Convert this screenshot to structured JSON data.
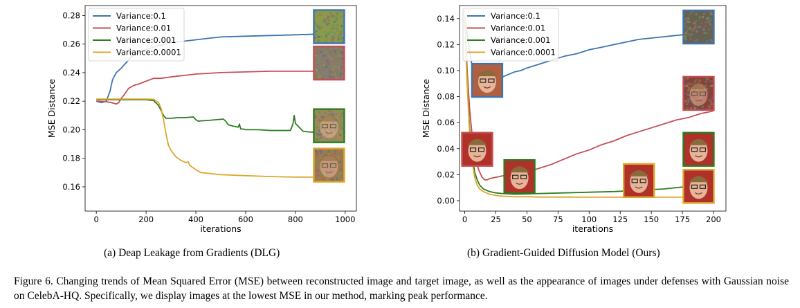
{
  "figure": {
    "caption_a": "(a) Deap Leakage from Gradients (DLG)",
    "caption_b": "(b) Gradient-Guided Diffusion Model (Ours)",
    "caption_main": "Figure 6. Changing trends of Mean Squared Error (MSE) between reconstructed image and target image, as well as the appearance of images under defenses with Gaussian noise on CelebA-HQ. Specifically, we display images at the lowest MSE in our method, marking peak performance."
  },
  "chart_data": [
    {
      "type": "line",
      "xlabel": "iterations",
      "ylabel": "MSE Distance",
      "xlim": [
        -45,
        1045
      ],
      "ylim": [
        0.143,
        0.287
      ],
      "xticks": [
        0,
        200,
        400,
        600,
        800,
        1000
      ],
      "yticks": [
        0.16,
        0.18,
        0.2,
        0.22,
        0.24,
        0.26,
        0.28
      ],
      "legend_position": "top-left",
      "grid": false,
      "series": [
        {
          "name": "Variance:0.1",
          "color": "#3b75af",
          "x": [
            0,
            20,
            40,
            55,
            65,
            80,
            100,
            120,
            140,
            170,
            200,
            250,
            300,
            350,
            400,
            450,
            500,
            600,
            700,
            800,
            900,
            1000
          ],
          "y": [
            0.22,
            0.219,
            0.22,
            0.227,
            0.235,
            0.24,
            0.243,
            0.247,
            0.251,
            0.254,
            0.256,
            0.259,
            0.261,
            0.262,
            0.263,
            0.264,
            0.265,
            0.2655,
            0.266,
            0.2665,
            0.267,
            0.267
          ]
        },
        {
          "name": "Variance:0.01",
          "color": "#c44e52",
          "x": [
            0,
            20,
            40,
            60,
            80,
            90,
            100,
            110,
            130,
            150,
            170,
            200,
            230,
            260,
            300,
            350,
            400,
            500,
            600,
            700,
            800,
            900,
            1000
          ],
          "y": [
            0.22,
            0.2198,
            0.2196,
            0.219,
            0.218,
            0.219,
            0.222,
            0.224,
            0.229,
            0.231,
            0.232,
            0.234,
            0.236,
            0.236,
            0.237,
            0.238,
            0.239,
            0.24,
            0.2405,
            0.241,
            0.241,
            0.241,
            0.241
          ]
        },
        {
          "name": "Variance:0.001",
          "color": "#2a7d1e",
          "x": [
            0,
            50,
            100,
            150,
            200,
            230,
            250,
            270,
            280,
            300,
            330,
            360,
            390,
            400,
            410,
            420,
            450,
            480,
            510,
            520,
            530,
            550,
            570,
            575,
            580,
            590,
            600,
            650,
            700,
            750,
            780,
            790,
            795,
            800,
            830,
            850,
            900,
            950,
            1000
          ],
          "y": [
            0.221,
            0.221,
            0.221,
            0.221,
            0.221,
            0.2205,
            0.217,
            0.21,
            0.208,
            0.208,
            0.2085,
            0.2085,
            0.209,
            0.207,
            0.206,
            0.2062,
            0.2065,
            0.207,
            0.2075,
            0.206,
            0.2035,
            0.2025,
            0.2018,
            0.204,
            0.2005,
            0.2005,
            0.2,
            0.2,
            0.1995,
            0.1995,
            0.1995,
            0.204,
            0.21,
            0.2045,
            0.199,
            0.1985,
            0.198,
            0.198,
            0.198
          ]
        },
        {
          "name": "Variance:0.0001",
          "color": "#dfa52a",
          "x": [
            0,
            50,
            100,
            150,
            200,
            230,
            250,
            260,
            270,
            280,
            290,
            300,
            320,
            340,
            360,
            370,
            375,
            380,
            400,
            420,
            500,
            600,
            700,
            800,
            900,
            1000
          ],
          "y": [
            0.2215,
            0.2215,
            0.2215,
            0.2215,
            0.2215,
            0.2213,
            0.219,
            0.215,
            0.207,
            0.197,
            0.189,
            0.1855,
            0.181,
            0.1785,
            0.177,
            0.1775,
            0.175,
            0.1745,
            0.172,
            0.17,
            0.1685,
            0.1678,
            0.1672,
            0.1668,
            0.1668,
            0.1668
          ]
        }
      ]
    },
    {
      "type": "line",
      "xlabel": "iterations",
      "ylabel": "MSE Distance",
      "xlim": [
        -4.2,
        210
      ],
      "ylim": [
        -0.008,
        0.15
      ],
      "xticks": [
        0,
        25,
        50,
        75,
        100,
        125,
        150,
        175,
        200
      ],
      "yticks": [
        0.0,
        0.02,
        0.04,
        0.06,
        0.08,
        0.1,
        0.12,
        0.14
      ],
      "legend_position": "top-left",
      "grid": false,
      "series": [
        {
          "name": "Variance:0.1",
          "color": "#3b75af",
          "x": [
            0,
            2,
            4,
            6,
            8,
            10,
            12,
            14,
            16,
            18,
            20,
            22,
            24,
            26,
            28,
            30,
            35,
            40,
            45,
            50,
            60,
            70,
            80,
            90,
            100,
            110,
            120,
            130,
            140,
            150,
            160,
            170,
            180,
            190,
            200
          ],
          "y": [
            0.142,
            0.129,
            0.115,
            0.103,
            0.094,
            0.089,
            0.086,
            0.084,
            0.083,
            0.084,
            0.086,
            0.088,
            0.09,
            0.092,
            0.094,
            0.095,
            0.097,
            0.099,
            0.1,
            0.102,
            0.105,
            0.108,
            0.111,
            0.113,
            0.116,
            0.118,
            0.12,
            0.122,
            0.124,
            0.125,
            0.126,
            0.127,
            0.128,
            0.128,
            0.129
          ]
        },
        {
          "name": "Variance:0.01",
          "color": "#c44e52",
          "x": [
            0,
            2,
            4,
            6,
            8,
            10,
            12,
            14,
            16,
            18,
            20,
            25,
            30,
            40,
            50,
            60,
            70,
            80,
            90,
            100,
            110,
            120,
            130,
            140,
            150,
            160,
            170,
            180,
            190,
            200
          ],
          "y": [
            0.14,
            0.1,
            0.07,
            0.05,
            0.036,
            0.027,
            0.022,
            0.018,
            0.016,
            0.016,
            0.017,
            0.018,
            0.019,
            0.02,
            0.022,
            0.025,
            0.028,
            0.032,
            0.036,
            0.039,
            0.043,
            0.046,
            0.05,
            0.053,
            0.056,
            0.059,
            0.062,
            0.064,
            0.067,
            0.069
          ]
        },
        {
          "name": "Variance:0.001",
          "color": "#2a7d1e",
          "x": [
            0,
            2,
            4,
            6,
            8,
            10,
            12,
            15,
            20,
            25,
            30,
            40,
            50,
            60,
            80,
            100,
            120,
            140,
            160,
            180,
            200
          ],
          "y": [
            0.14,
            0.09,
            0.055,
            0.035,
            0.022,
            0.016,
            0.012,
            0.009,
            0.007,
            0.006,
            0.0055,
            0.005,
            0.0052,
            0.0055,
            0.006,
            0.0065,
            0.007,
            0.008,
            0.009,
            0.011,
            0.013
          ]
        },
        {
          "name": "Variance:0.0001",
          "color": "#dfa52a",
          "x": [
            0,
            2,
            4,
            6,
            8,
            10,
            12,
            15,
            20,
            25,
            30,
            40,
            50,
            60,
            80,
            100,
            120,
            140,
            160,
            180,
            200
          ],
          "y": [
            0.143,
            0.09,
            0.05,
            0.03,
            0.018,
            0.012,
            0.009,
            0.007,
            0.005,
            0.004,
            0.0035,
            0.003,
            0.003,
            0.0028,
            0.0028,
            0.0027,
            0.0027,
            0.0027,
            0.0027,
            0.0027,
            0.0027
          ]
        }
      ]
    }
  ],
  "thumbnails": [
    {
      "chart": 0,
      "x": 935,
      "y": 0.2722,
      "border": "#3b75af",
      "kind": "noise",
      "tint": "#8a9a4a"
    },
    {
      "chart": 0,
      "x": 935,
      "y": 0.2467,
      "border": "#c44e52",
      "kind": "noise",
      "tint": "#8a7a6a"
    },
    {
      "chart": 0,
      "x": 935,
      "y": 0.2028,
      "border": "#2a7d1e",
      "kind": "face-noisy",
      "tint": "#9a8a5a"
    },
    {
      "chart": 0,
      "x": 935,
      "y": 0.1752,
      "border": "#dfa52a",
      "kind": "face-noisy",
      "tint": "#a07850"
    },
    {
      "chart": 1,
      "x": 18,
      "y": 0.0925,
      "border": "#3b75af",
      "kind": "face-art",
      "tint": "#b06040"
    },
    {
      "chart": 1,
      "x": 188,
      "y": 0.1335,
      "border": "#3b75af",
      "kind": "noise",
      "tint": "#6a6050"
    },
    {
      "chart": 1,
      "x": 188,
      "y": 0.0825,
      "border": "#c44e52",
      "kind": "face-noisy",
      "tint": "#8a4038"
    },
    {
      "chart": 1,
      "x": 10,
      "y": 0.0395,
      "border": "#c44e52",
      "kind": "face",
      "tint": "#b0302a"
    },
    {
      "chart": 1,
      "x": 188,
      "y": 0.0395,
      "border": "#2a7d1e",
      "kind": "face",
      "tint": "#b0302a"
    },
    {
      "chart": 1,
      "x": 44,
      "y": 0.0185,
      "border": "#2a7d1e",
      "kind": "face",
      "tint": "#b0302a"
    },
    {
      "chart": 1,
      "x": 140,
      "y": 0.0155,
      "border": "#dfa52a",
      "kind": "face",
      "tint": "#b0302a"
    },
    {
      "chart": 1,
      "x": 188,
      "y": 0.011,
      "border": "#dfa52a",
      "kind": "face",
      "tint": "#b0302a"
    }
  ]
}
